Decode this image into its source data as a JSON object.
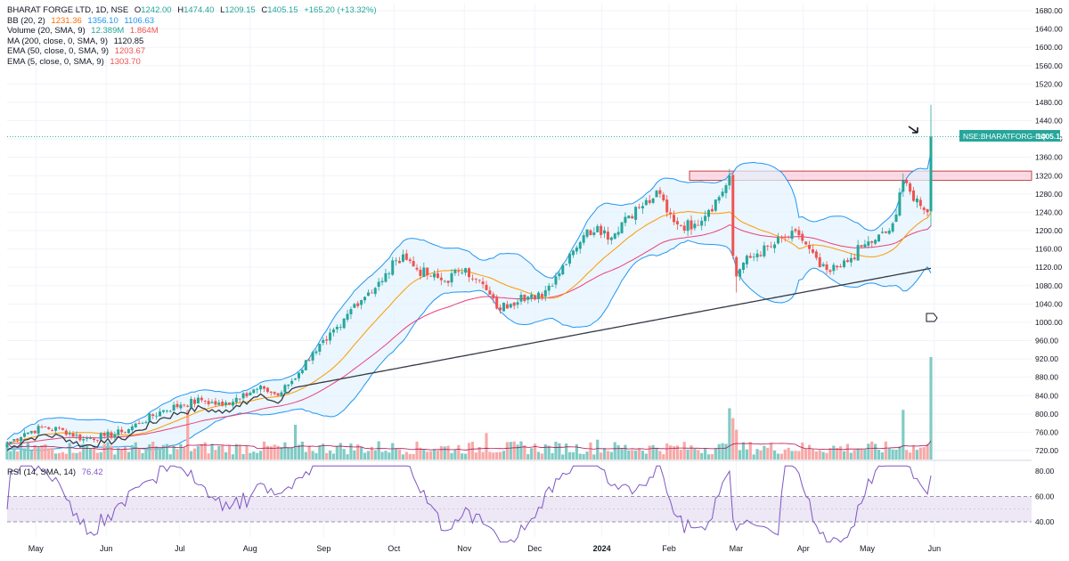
{
  "legend": {
    "symbol_line": {
      "title": "BHARAT FORGE LTD, 1D, NSE",
      "o_label": "O",
      "open": "1242.00",
      "h_label": "H",
      "high": "1474.40",
      "l_label": "L",
      "low": "1209.15",
      "c_label": "C",
      "close": "1405.15",
      "change": "+165.20 (+13.32%)"
    },
    "bb": {
      "label": "BB (20, 2)",
      "basis": "1231.36",
      "upper": "1356.10",
      "lower": "1106.63"
    },
    "volume": {
      "label": "Volume (20, SMA, 9)",
      "value": "12.389M",
      "ma": "1.864M"
    },
    "ma200": {
      "label": "MA (200, close, 0, SMA, 9)",
      "value": "1120.85"
    },
    "ema50": {
      "label": "EMA (50, close, 0, SMA, 9)",
      "value": "1203.67"
    },
    "ema5": {
      "label": "EMA (5, close, 0, SMA, 9)",
      "value": "1303.70"
    }
  },
  "rsi_legend": {
    "label": "RSI (14, SMA, 14)",
    "value": "76.42"
  },
  "price_tag": {
    "symbol": "NSE:BHARATFORG-EQ",
    "price": "1405.15"
  },
  "colors": {
    "up": "#26a69a",
    "down": "#ef5350",
    "bb": "#2196f3",
    "bb_fill": "#e3f2fd",
    "ema50": "#ff9800",
    "ma200": "#363a45",
    "ema5": "#9c27b0",
    "rsi": "#7e57c2",
    "rsi_band": "#ede7f6",
    "zone": "#f8bbd0"
  },
  "chart_data": {
    "type": "candlestick",
    "title": "BHARAT FORGE LTD, 1D, NSE",
    "price_axis_ticks": [
      "1680.00",
      "1640.00",
      "1600.00",
      "1560.00",
      "1520.00",
      "1480.00",
      "1440.00",
      "1400.00",
      "1360.00",
      "1320.00",
      "1280.00",
      "1240.00",
      "1200.00",
      "1160.00",
      "1120.00",
      "1080.00",
      "1040.00",
      "1000.00",
      "960.00",
      "920.00",
      "880.00",
      "840.00",
      "800.00",
      "760.00",
      "720.00"
    ],
    "rsi_axis_ticks": [
      "80.00",
      "60.00",
      "40.00"
    ],
    "time_axis_labels": [
      "May",
      "Jun",
      "Jul",
      "Aug",
      "Sep",
      "Oct",
      "Nov",
      "Dec",
      "2024",
      "Feb",
      "Mar",
      "Apr",
      "May",
      "Jun"
    ],
    "ylim": [
      700,
      1700
    ],
    "resistance_zone": [
      1310,
      1330
    ],
    "last_price": 1405.15,
    "anchors": [
      {
        "x": 0,
        "y": 735
      },
      {
        "x": 5,
        "y": 758
      },
      {
        "x": 10,
        "y": 770
      },
      {
        "x": 16,
        "y": 765
      },
      {
        "x": 22,
        "y": 745
      },
      {
        "x": 28,
        "y": 752
      },
      {
        "x": 33,
        "y": 760
      },
      {
        "x": 38,
        "y": 780
      },
      {
        "x": 44,
        "y": 805
      },
      {
        "x": 50,
        "y": 820
      },
      {
        "x": 56,
        "y": 830
      },
      {
        "x": 62,
        "y": 818
      },
      {
        "x": 68,
        "y": 845
      },
      {
        "x": 74,
        "y": 855
      },
      {
        "x": 78,
        "y": 840
      },
      {
        "x": 84,
        "y": 890
      },
      {
        "x": 88,
        "y": 935
      },
      {
        "x": 92,
        "y": 960
      },
      {
        "x": 96,
        "y": 990
      },
      {
        "x": 100,
        "y": 1040
      },
      {
        "x": 104,
        "y": 1065
      },
      {
        "x": 108,
        "y": 1090
      },
      {
        "x": 112,
        "y": 1135
      },
      {
        "x": 114,
        "y": 1148
      },
      {
        "x": 118,
        "y": 1115
      },
      {
        "x": 122,
        "y": 1100
      },
      {
        "x": 126,
        "y": 1090
      },
      {
        "x": 130,
        "y": 1110
      },
      {
        "x": 132,
        "y": 1118
      },
      {
        "x": 135,
        "y": 1095
      },
      {
        "x": 138,
        "y": 1070
      },
      {
        "x": 141,
        "y": 1030
      },
      {
        "x": 145,
        "y": 1040
      },
      {
        "x": 148,
        "y": 1060
      },
      {
        "x": 152,
        "y": 1050
      },
      {
        "x": 155,
        "y": 1070
      },
      {
        "x": 158,
        "y": 1100
      },
      {
        "x": 162,
        "y": 1150
      },
      {
        "x": 166,
        "y": 1190
      },
      {
        "x": 170,
        "y": 1210
      },
      {
        "x": 174,
        "y": 1185
      },
      {
        "x": 178,
        "y": 1230
      },
      {
        "x": 182,
        "y": 1250
      },
      {
        "x": 186,
        "y": 1270
      },
      {
        "x": 188,
        "y": 1280
      },
      {
        "x": 190,
        "y": 1240
      },
      {
        "x": 194,
        "y": 1210
      },
      {
        "x": 198,
        "y": 1215
      },
      {
        "x": 202,
        "y": 1245
      },
      {
        "x": 206,
        "y": 1285
      },
      {
        "x": 208,
        "y": 1320
      },
      {
        "x": 209,
        "y": 1145
      },
      {
        "x": 210,
        "y": 1100
      },
      {
        "x": 212,
        "y": 1130
      },
      {
        "x": 216,
        "y": 1150
      },
      {
        "x": 220,
        "y": 1165
      },
      {
        "x": 224,
        "y": 1185
      },
      {
        "x": 228,
        "y": 1190
      },
      {
        "x": 231,
        "y": 1160
      },
      {
        "x": 234,
        "y": 1120
      },
      {
        "x": 237,
        "y": 1110
      },
      {
        "x": 240,
        "y": 1120
      },
      {
        "x": 243,
        "y": 1140
      },
      {
        "x": 246,
        "y": 1165
      },
      {
        "x": 250,
        "y": 1180
      },
      {
        "x": 254,
        "y": 1200
      },
      {
        "x": 256,
        "y": 1235
      },
      {
        "x": 258,
        "y": 1310
      },
      {
        "x": 260,
        "y": 1285
      },
      {
        "x": 262,
        "y": 1270
      },
      {
        "x": 264,
        "y": 1245
      },
      {
        "x": 265,
        "y": 1240
      },
      {
        "x": 266,
        "y": 1405
      }
    ],
    "volume_ylim": [
      0,
      14
    ],
    "rsi_ylim": [
      20,
      90
    ]
  }
}
